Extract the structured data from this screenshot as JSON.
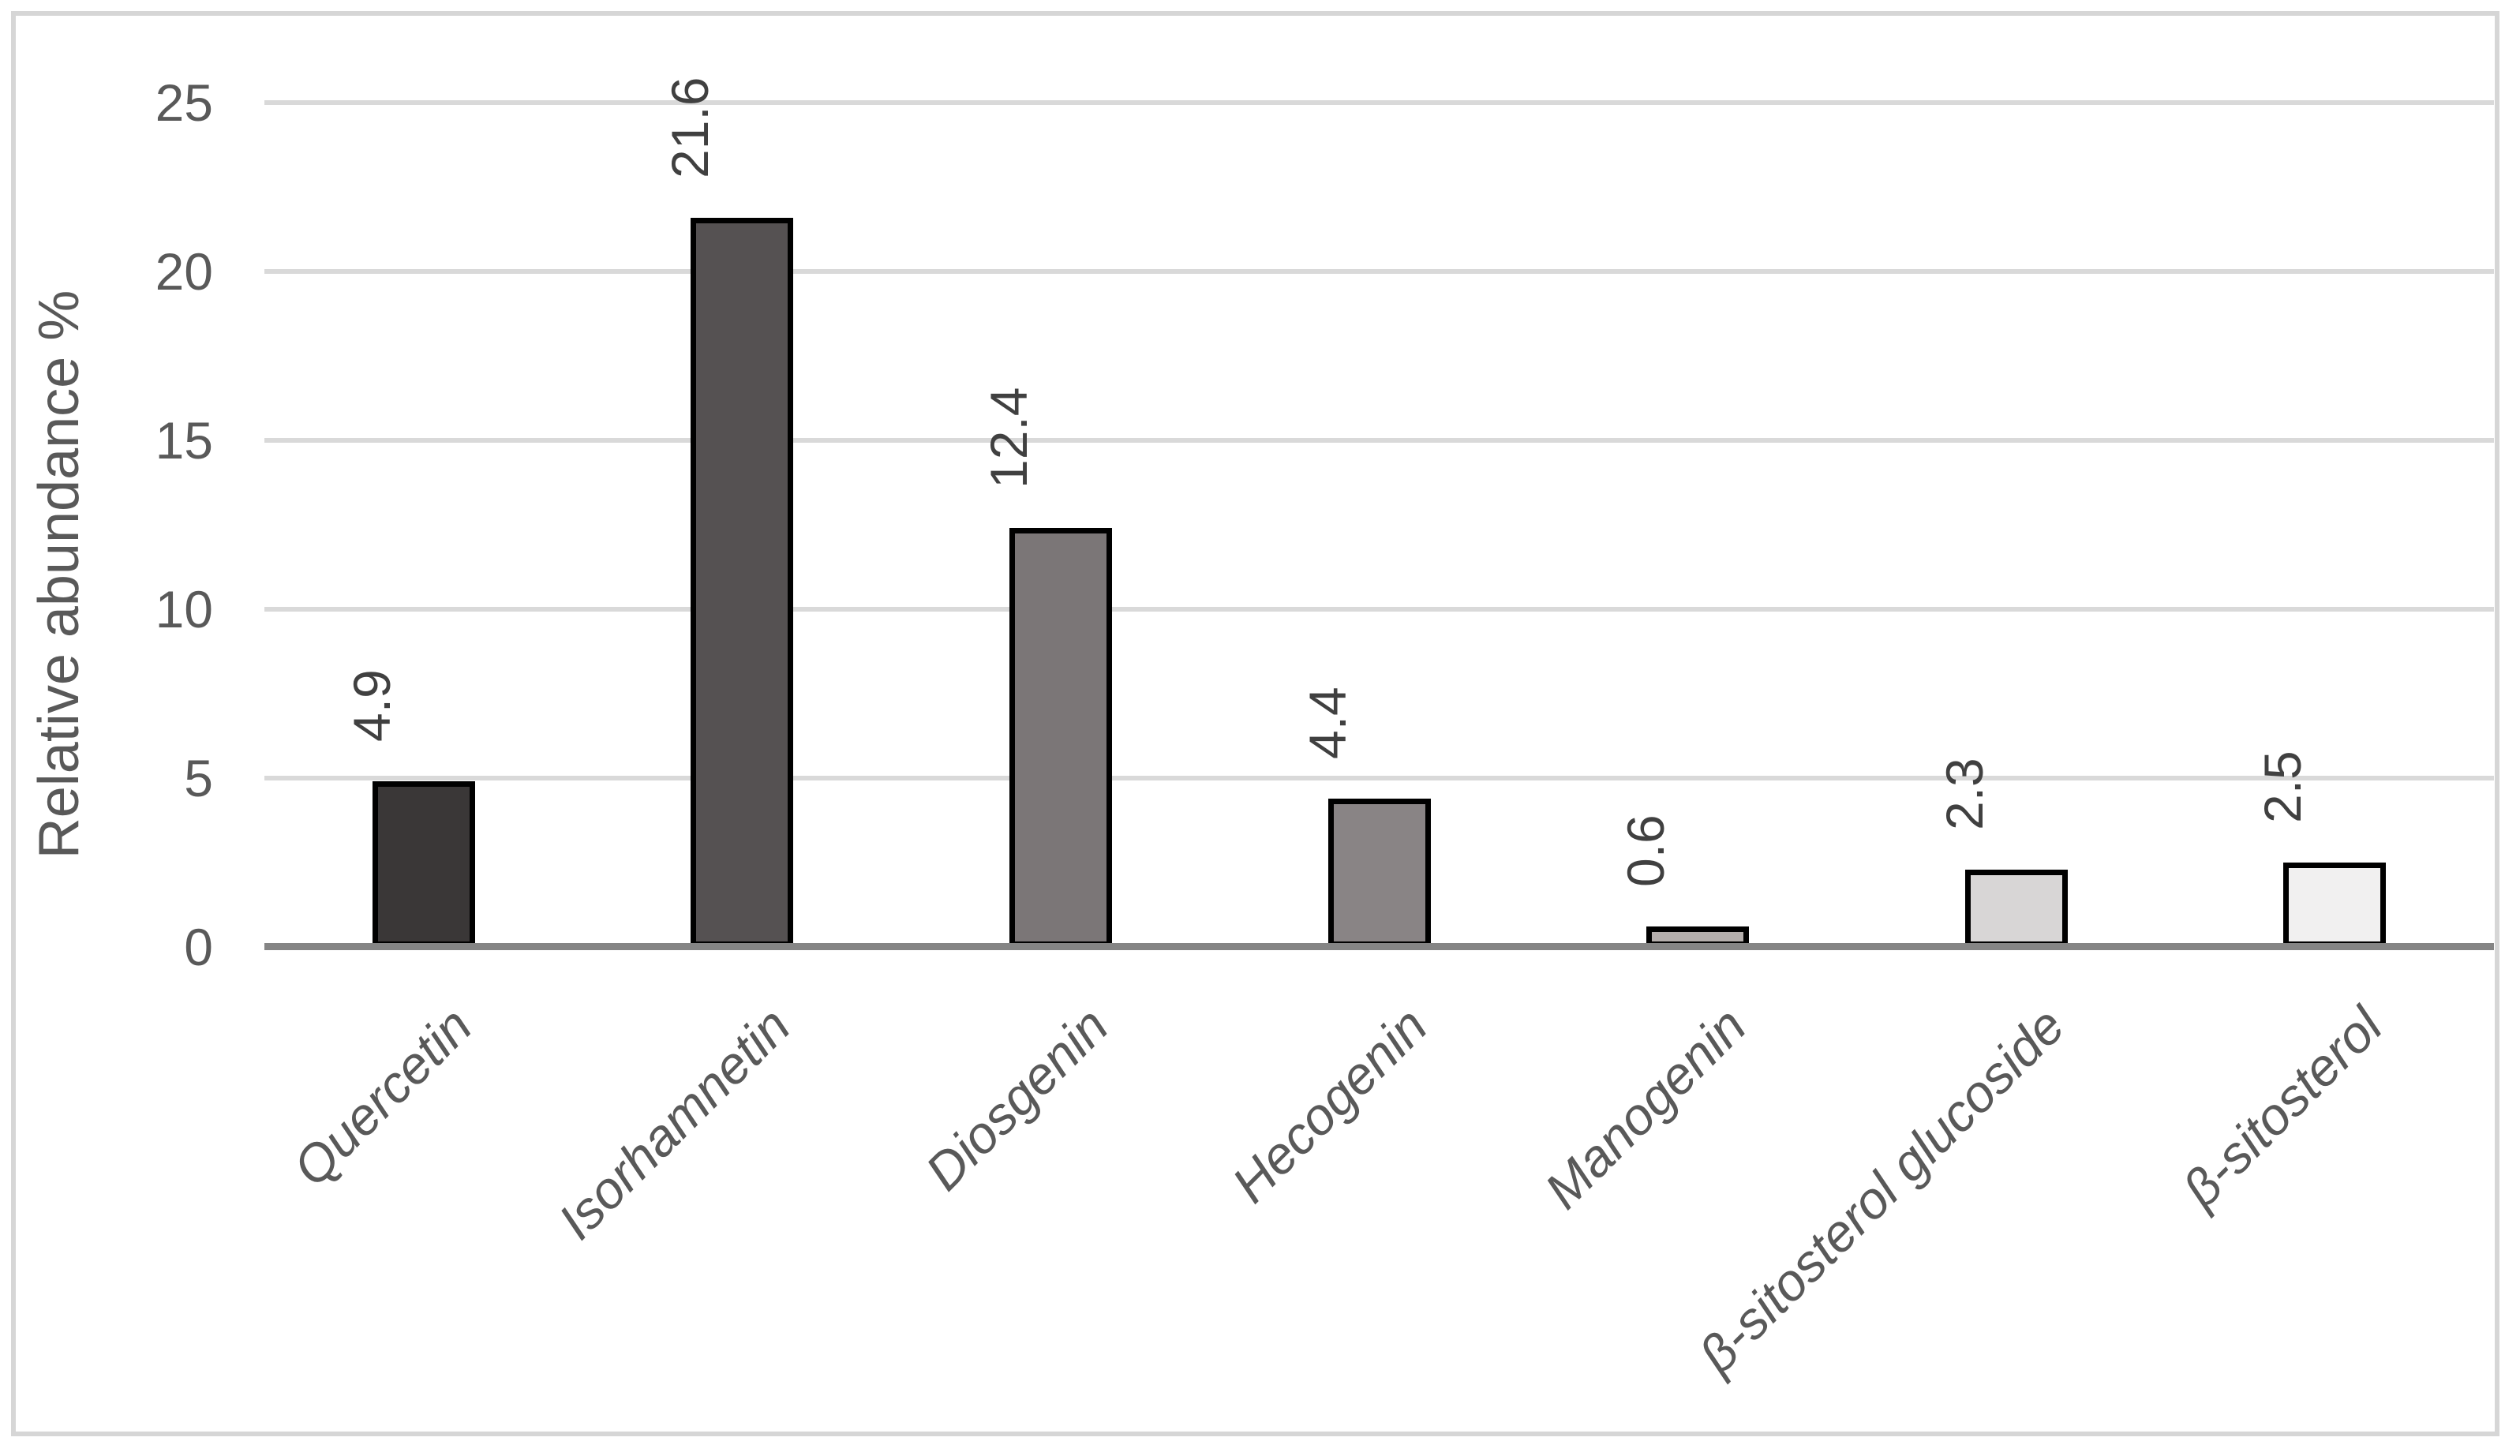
{
  "chart_data": {
    "type": "bar",
    "title": "",
    "categories": [
      "Quercetin",
      "Isorhamnetin",
      "Diosgenin",
      "Hecogenin",
      "Manogenin",
      "β-sitosterol glucoside",
      "β-sitosterol"
    ],
    "values": [
      4.9,
      21.6,
      12.4,
      4.4,
      0.6,
      2.3,
      2.5
    ],
    "data_labels": [
      "4.9",
      "21.6",
      "12.4",
      "4.4",
      "0.6",
      "2.3",
      "2.5"
    ],
    "xlabel": "",
    "ylabel": "Relative abundance %",
    "ylim": [
      0,
      25
    ],
    "yticks": [
      0,
      5,
      10,
      15,
      20,
      25
    ],
    "ytick_labels": [
      "0",
      "5",
      "10",
      "15",
      "20",
      "25"
    ],
    "grid": true,
    "legend": false,
    "colors": {
      "bar_fills": [
        "#3a3737",
        "#555152",
        "#7b7677",
        "#898485",
        "#b4aeac",
        "#d8d6d6",
        "#f1f0f0"
      ],
      "bar_border": "#000000",
      "gridline": "#d9d9d9",
      "axis_line": "#858585",
      "tick_label": "#595959",
      "data_label": "#404040",
      "category_label": "#595959",
      "axis_title": "#595959",
      "frame_border": "#d6d6d6",
      "background": "#ffffff"
    }
  }
}
